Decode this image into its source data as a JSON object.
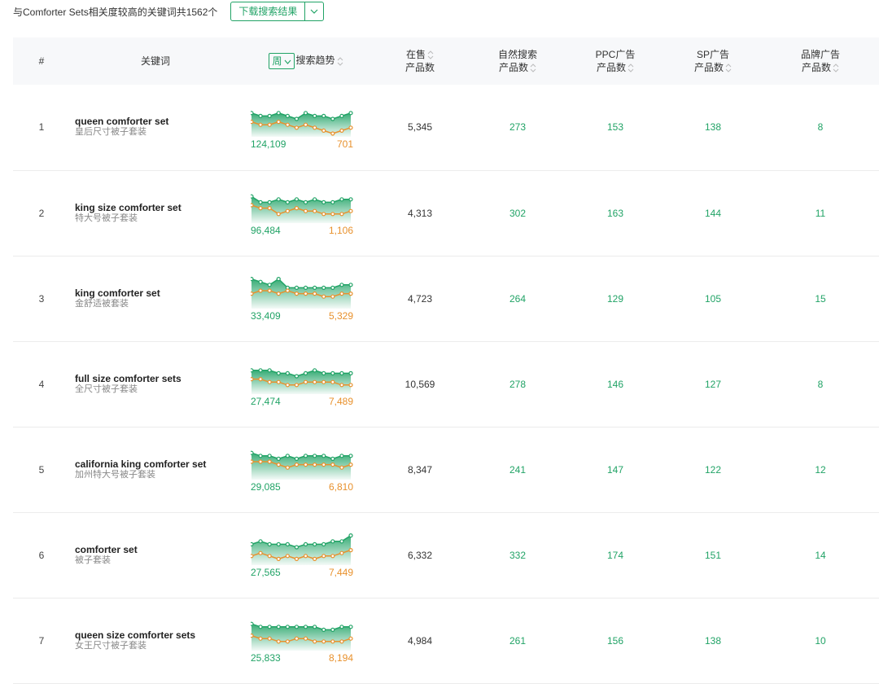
{
  "toolbar": {
    "summary": "与Comforter Sets相关度较高的关键词共1562个",
    "download_label": "下载搜索结果"
  },
  "header": {
    "index": "#",
    "keyword": "关键词",
    "period": "周",
    "trend": "搜索趋势",
    "on_sale_l1": "在售",
    "on_sale_l2": "产品数",
    "organic_l1": "自然搜索",
    "organic_l2": "产品数",
    "ppc_l1": "PPC广告",
    "ppc_l2": "产品数",
    "sp_l1": "SP广告",
    "sp_l2": "产品数",
    "brand_l1": "品牌广告",
    "brand_l2": "产品数"
  },
  "colors": {
    "green": "#21a366",
    "orange": "#e8912d"
  },
  "rows": [
    {
      "index": "1",
      "keyword": "queen comforter set",
      "keyword_cn": "皇后尺寸被子套装",
      "volume": "124,109",
      "rank": "701",
      "on_sale": "5,345",
      "organic": "273",
      "ppc": "153",
      "sp": "138",
      "brand": "8",
      "trend_green": [
        7,
        6,
        6,
        7,
        6,
        5,
        7,
        6,
        6,
        5,
        6,
        7
      ],
      "trend_orange": [
        4,
        3,
        3,
        4,
        3,
        2,
        3,
        2,
        1,
        0,
        1,
        2
      ]
    },
    {
      "index": "2",
      "keyword": "king size comforter set",
      "keyword_cn": "特大号被子套装",
      "volume": "96,484",
      "rank": "1,106",
      "on_sale": "4,313",
      "organic": "302",
      "ppc": "163",
      "sp": "144",
      "brand": "11",
      "trend_green": [
        8,
        6,
        6,
        7,
        6,
        7,
        6,
        7,
        6,
        6,
        7,
        7
      ],
      "trend_orange": [
        5,
        4,
        4,
        2,
        3,
        4,
        3,
        3,
        2,
        2,
        2,
        3
      ]
    },
    {
      "index": "3",
      "keyword": "king comforter set",
      "keyword_cn": "金舒适被套装",
      "volume": "33,409",
      "rank": "5,329",
      "on_sale": "4,723",
      "organic": "264",
      "ppc": "129",
      "sp": "105",
      "brand": "15",
      "trend_green": [
        9,
        8,
        7,
        9,
        6,
        6,
        6,
        6,
        6,
        6,
        7,
        7
      ],
      "trend_orange": [
        4,
        5,
        5,
        4,
        5,
        4,
        4,
        4,
        3,
        3,
        4,
        4
      ]
    },
    {
      "index": "4",
      "keyword": "full size comforter sets",
      "keyword_cn": "全尺寸被子套装",
      "volume": "27,474",
      "rank": "7,489",
      "on_sale": "10,569",
      "organic": "278",
      "ppc": "146",
      "sp": "127",
      "brand": "8",
      "trend_green": [
        7,
        7,
        7,
        6,
        6,
        5,
        6,
        7,
        6,
        6,
        6,
        6
      ],
      "trend_orange": [
        4,
        4,
        3,
        3,
        2,
        2,
        3,
        3,
        3,
        3,
        2,
        2
      ]
    },
    {
      "index": "5",
      "keyword": "california king comforter set",
      "keyword_cn": "加州特大号被子套装",
      "volume": "29,085",
      "rank": "6,810",
      "on_sale": "8,347",
      "organic": "241",
      "ppc": "147",
      "sp": "122",
      "brand": "12",
      "trend_green": [
        8,
        7,
        7,
        6,
        7,
        6,
        7,
        7,
        7,
        6,
        7,
        7
      ],
      "trend_orange": [
        5,
        5,
        5,
        4,
        3,
        4,
        4,
        4,
        4,
        4,
        3,
        4
      ]
    },
    {
      "index": "6",
      "keyword": "comforter set",
      "keyword_cn": "被子套装",
      "volume": "27,565",
      "rank": "7,449",
      "on_sale": "6,332",
      "organic": "332",
      "ppc": "174",
      "sp": "151",
      "brand": "14",
      "trend_green": [
        6,
        7,
        6,
        6,
        6,
        5,
        6,
        6,
        6,
        7,
        7,
        9
      ],
      "trend_orange": [
        2,
        3,
        2,
        1,
        2,
        1,
        2,
        1,
        2,
        2,
        3,
        4
      ]
    },
    {
      "index": "7",
      "keyword": "queen size comforter sets",
      "keyword_cn": "女王尺寸被子套装",
      "volume": "25,833",
      "rank": "8,194",
      "on_sale": "4,984",
      "organic": "261",
      "ppc": "156",
      "sp": "138",
      "brand": "10",
      "trend_green": [
        8,
        7,
        7,
        7,
        7,
        7,
        7,
        7,
        6,
        6,
        7,
        7
      ],
      "trend_orange": [
        4,
        3,
        3,
        2,
        2,
        3,
        3,
        2,
        2,
        2,
        2,
        3
      ]
    }
  ]
}
